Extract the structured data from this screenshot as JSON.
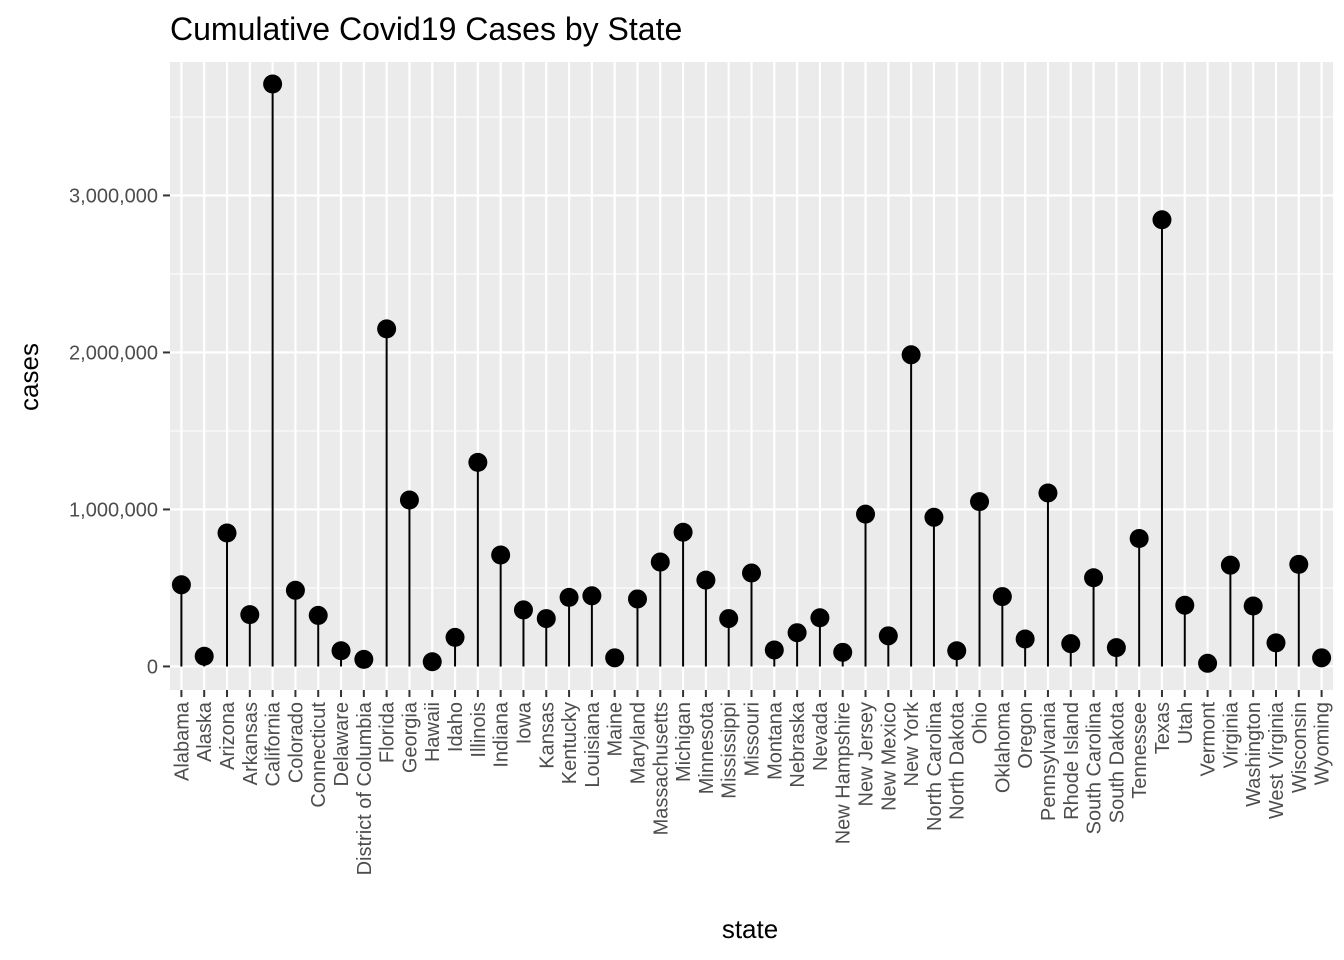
{
  "chart_data": {
    "type": "lollipop",
    "title": "Cumulative Covid19 Cases by State",
    "xlabel": "state",
    "ylabel": "cases",
    "ylim": [
      -150000,
      3850000
    ],
    "y_ticks": [
      0,
      1000000,
      2000000,
      3000000
    ],
    "y_tick_labels": [
      "0",
      "1,000,000",
      "2,000,000",
      "3,000,000"
    ],
    "grid": true,
    "categories": [
      "Alabama",
      "Alaska",
      "Arizona",
      "Arkansas",
      "California",
      "Colorado",
      "Connecticut",
      "Delaware",
      "District of Columbia",
      "Florida",
      "Georgia",
      "Hawaii",
      "Idaho",
      "Illinois",
      "Indiana",
      "Iowa",
      "Kansas",
      "Kentucky",
      "Louisiana",
      "Maine",
      "Maryland",
      "Massachusetts",
      "Michigan",
      "Minnesota",
      "Mississippi",
      "Missouri",
      "Montana",
      "Nebraska",
      "Nevada",
      "New Hampshire",
      "New Jersey",
      "New Mexico",
      "New York",
      "North Carolina",
      "North Dakota",
      "Ohio",
      "Oklahoma",
      "Oregon",
      "Pennsylvania",
      "Rhode Island",
      "South Carolina",
      "South Dakota",
      "Tennessee",
      "Texas",
      "Utah",
      "Vermont",
      "Virginia",
      "Washington",
      "West Virginia",
      "Wisconsin",
      "Wyoming"
    ],
    "values": [
      520000,
      65000,
      850000,
      330000,
      3710000,
      485000,
      325000,
      100000,
      45000,
      2150000,
      1060000,
      30000,
      185000,
      1300000,
      710000,
      360000,
      305000,
      440000,
      450000,
      55000,
      430000,
      665000,
      855000,
      550000,
      305000,
      595000,
      105000,
      215000,
      310000,
      90000,
      970000,
      195000,
      1985000,
      950000,
      100000,
      1050000,
      445000,
      175000,
      1105000,
      145000,
      565000,
      120000,
      815000,
      2845000,
      390000,
      20000,
      645000,
      385000,
      150000,
      650000,
      55000
    ]
  }
}
